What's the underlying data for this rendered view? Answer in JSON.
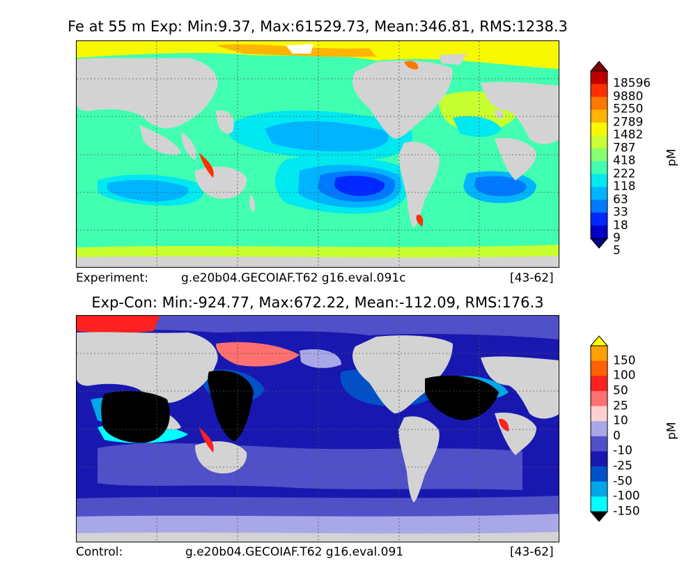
{
  "panels": [
    {
      "title": "Fe at 55 m Exp: Min:9.37, Max:61529.73, Mean:346.81, RMS:1238.3",
      "caption_left": "Experiment:",
      "caption_mid": "g.e20b04.GECOIAF.T62 g16.eval.091c",
      "caption_right": "[43-62]",
      "unit": "pM",
      "colorbar": {
        "levels": [
          "5",
          "9",
          "18",
          "33",
          "63",
          "118",
          "222",
          "418",
          "787",
          "1482",
          "2789",
          "5250",
          "9880",
          "18596"
        ],
        "colors": [
          "#00007f",
          "#0000c8",
          "#0028ff",
          "#0078ff",
          "#00b4ff",
          "#00e8f0",
          "#40ffb0",
          "#88ff70",
          "#c8ff30",
          "#f8f800",
          "#ffb400",
          "#ff7800",
          "#ff3000",
          "#c00000",
          "#800000"
        ]
      }
    },
    {
      "title": "Exp-Con: Min:-924.77, Max:672.22, Mean:-112.09, RMS:176.3",
      "caption_left": "Control:",
      "caption_mid": "g.e20b04.GECOIAF.T62 g16.eval.091",
      "caption_right": "[43-62]",
      "unit": "pM",
      "colorbar": {
        "levels": [
          "-150",
          "-100",
          "-50",
          "-25",
          "-10",
          "0",
          "10",
          "25",
          "50",
          "100",
          "150"
        ],
        "colors": [
          "#000000",
          "#00ffff",
          "#00a8e8",
          "#0050c8",
          "#1818b0",
          "#5050c8",
          "#a8a8e8",
          "#ffd0d0",
          "#ff7070",
          "#ff2020",
          "#ff6000",
          "#ffa000",
          "#ffff00"
        ]
      }
    }
  ]
}
